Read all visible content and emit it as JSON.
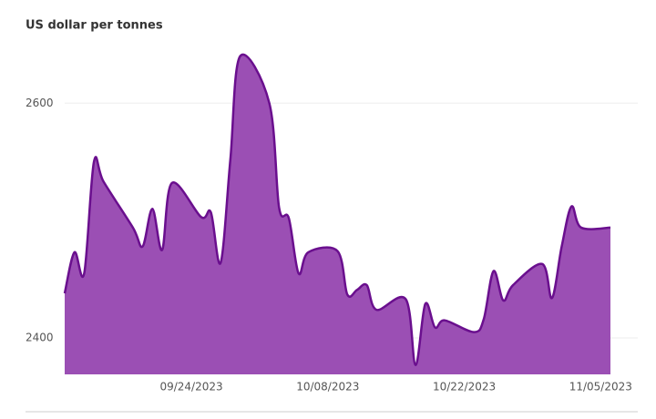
{
  "chart_data": {
    "type": "area",
    "title": "US dollar per tonnes",
    "x": [
      "2023-09-11",
      "2023-09-12",
      "2023-09-13",
      "2023-09-14",
      "2023-09-15",
      "2023-09-18",
      "2023-09-19",
      "2023-09-20",
      "2023-09-21",
      "2023-09-22",
      "2023-09-25",
      "2023-09-26",
      "2023-09-27",
      "2023-09-28",
      "2023-09-29",
      "2023-10-02",
      "2023-10-03",
      "2023-10-04",
      "2023-10-05",
      "2023-10-06",
      "2023-10-09",
      "2023-10-10",
      "2023-10-11",
      "2023-10-12",
      "2023-10-13",
      "2023-10-16",
      "2023-10-17",
      "2023-10-18",
      "2023-10-19",
      "2023-10-20",
      "2023-10-23",
      "2023-10-24",
      "2023-10-25",
      "2023-10-26",
      "2023-10-27",
      "2023-10-30",
      "2023-10-31",
      "2023-11-01",
      "2023-11-02",
      "2023-11-03",
      "2023-11-06"
    ],
    "values": [
      2438,
      2473,
      2455,
      2550,
      2533,
      2494,
      2478,
      2510,
      2475,
      2532,
      2503,
      2507,
      2464,
      2552,
      2640,
      2600,
      2511,
      2502,
      2455,
      2473,
      2474,
      2437,
      2441,
      2445,
      2424,
      2433,
      2377,
      2429,
      2409,
      2415,
      2405,
      2416,
      2457,
      2432,
      2445,
      2463,
      2434,
      2478,
      2512,
      2494,
      2494
    ],
    "color": "#9b4fb4",
    "line_color": "#6a0f8e",
    "xlim": [
      "2023-09-11",
      "2023-11-06"
    ],
    "xticks": [
      {
        "value": "2023-09-24",
        "label": "09/24/2023"
      },
      {
        "value": "2023-10-08",
        "label": "10/08/2023"
      },
      {
        "value": "2023-10-22",
        "label": "10/22/2023"
      },
      {
        "value": "2023-11-05",
        "label": "11/05/2023"
      }
    ],
    "ylim": [
      2369,
      2653
    ],
    "yticks": [
      2400,
      2600
    ],
    "grid": true
  }
}
